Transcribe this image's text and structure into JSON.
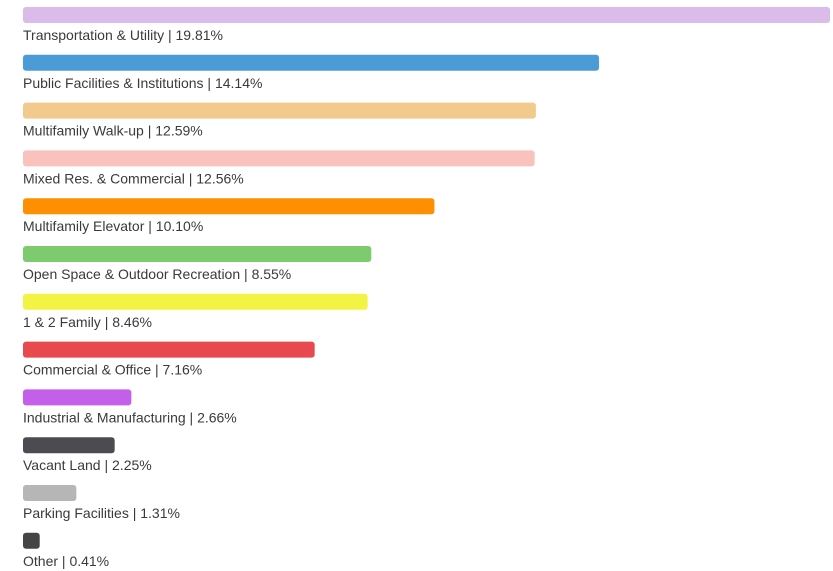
{
  "chart_data": {
    "type": "hbar",
    "categories": [
      "Transportation & Utility",
      "Public Facilities & Institutions",
      "Multifamily Walk-up",
      "Mixed Res. & Commercial",
      "Multifamily Elevator",
      "Open Space & Outdoor Recreation",
      "1 & 2 Family",
      "Commercial & Office",
      "Industrial & Manufacturing",
      "Vacant Land",
      "Parking Facilities",
      "Other"
    ],
    "values": [
      19.81,
      14.14,
      12.59,
      12.56,
      10.1,
      8.55,
      8.46,
      7.16,
      2.66,
      2.25,
      1.31,
      0.41
    ],
    "value_labels": [
      "19.81%",
      "14.14%",
      "12.59%",
      "12.56%",
      "10.10%",
      "8.55%",
      "8.46%",
      "7.16%",
      "2.66%",
      "2.25%",
      "1.31%",
      "0.41%"
    ],
    "label_separator": " | ",
    "colors": [
      "#dbbbe9",
      "#4b9bd7",
      "#f3ca8d",
      "#f9c2bd",
      "#fd8f00",
      "#7dca6f",
      "#f3f345",
      "#e8494f",
      "#c35fe9",
      "#4b4b51",
      "#b6b6b6",
      "#454545"
    ],
    "xlim": [
      0,
      19.81
    ]
  }
}
